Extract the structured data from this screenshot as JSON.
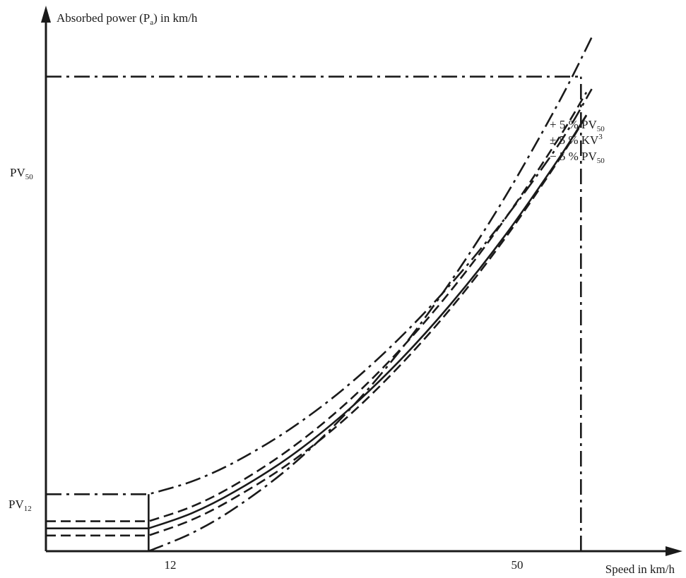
{
  "chart_data": {
    "type": "line",
    "ylabel": {
      "base": "Absorbed power (P",
      "sub": "a",
      "tail": ") in km/h"
    },
    "xlabel": "Speed in km/h",
    "x_ticks": [
      {
        "value": 12,
        "label": "12"
      },
      {
        "value": 50,
        "label": "50"
      }
    ],
    "y_ticks": [
      {
        "key": "pv12",
        "base": "PV",
        "sub": "12"
      },
      {
        "key": "pv50",
        "base": "PV",
        "sub": "50"
      }
    ],
    "xlim": [
      2.5,
      61
    ],
    "ylim": [
      0,
      1.105
    ],
    "pv12_relative": 0.0138,
    "grid": false,
    "series": [
      {
        "key": "plus5",
        "style": "dash-dot",
        "description": "+ 5 % PV50 tolerance limit",
        "x": [
          2.5,
          12,
          16,
          20,
          25,
          30,
          35,
          40,
          45,
          50,
          53
        ],
        "y": [
          0.12,
          0.12,
          0.147,
          0.188,
          0.256,
          0.341,
          0.444,
          0.564,
          0.702,
          0.859,
          0.974
        ]
      },
      {
        "key": "plusK",
        "style": "dashed",
        "description": "+ 5 % KV3 limit",
        "x": [
          2.5,
          12,
          16,
          20,
          25,
          30,
          35,
          40,
          45,
          50,
          52.5
        ],
        "y": [
          0.063,
          0.063,
          0.094,
          0.14,
          0.214,
          0.306,
          0.418,
          0.55,
          0.701,
          0.872,
          0.967
        ]
      },
      {
        "key": "nominal",
        "style": "solid",
        "description": "KV3 nominal curve",
        "x": [
          2.5,
          12,
          16,
          20,
          25,
          30,
          35,
          40,
          45,
          50,
          52.5
        ],
        "y": [
          0.048,
          0.048,
          0.08,
          0.126,
          0.198,
          0.288,
          0.396,
          0.522,
          0.666,
          0.829,
          0.919
        ]
      },
      {
        "key": "minusK",
        "style": "dashed",
        "description": "- 5 % KV3 limit",
        "x": [
          2.5,
          12,
          16,
          20,
          25,
          30,
          35,
          40,
          45,
          50,
          52.5
        ],
        "y": [
          0.033,
          0.033,
          0.066,
          0.113,
          0.185,
          0.275,
          0.385,
          0.513,
          0.66,
          0.826,
          0.918
        ]
      },
      {
        "key": "minus5",
        "style": "dash-dot",
        "description": "- 5 % PV50 tolerance limit",
        "x": [
          12,
          16,
          20,
          25,
          30,
          35,
          40,
          45,
          50,
          53
        ],
        "y": [
          0.0,
          0.038,
          0.091,
          0.176,
          0.284,
          0.415,
          0.57,
          0.747,
          0.948,
          1.083
        ]
      }
    ],
    "reference_lines": [
      {
        "key": "pv50-horizontal",
        "style": "dash-dot",
        "from": [
          2.5,
          1.0
        ],
        "to": [
          52,
          1.0
        ]
      },
      {
        "key": "v50-vertical",
        "style": "dash-dot",
        "from": [
          52,
          0
        ],
        "to": [
          52,
          1.0
        ]
      },
      {
        "key": "v12-vertical",
        "style": "solid",
        "from": [
          12,
          0
        ],
        "to": [
          12,
          0.12
        ]
      }
    ],
    "legend": {
      "placement": "top-right",
      "entries": [
        {
          "key": "plus5",
          "pre": "+ 5 % PV",
          "sub": "50",
          "sup": ""
        },
        {
          "key": "plusK",
          "pre": "± 5 % KV",
          "sub": "",
          "sup": "3"
        },
        {
          "key": "minus5",
          "pre": "− 5 % PV",
          "sub": "50",
          "sup": ""
        }
      ]
    }
  }
}
